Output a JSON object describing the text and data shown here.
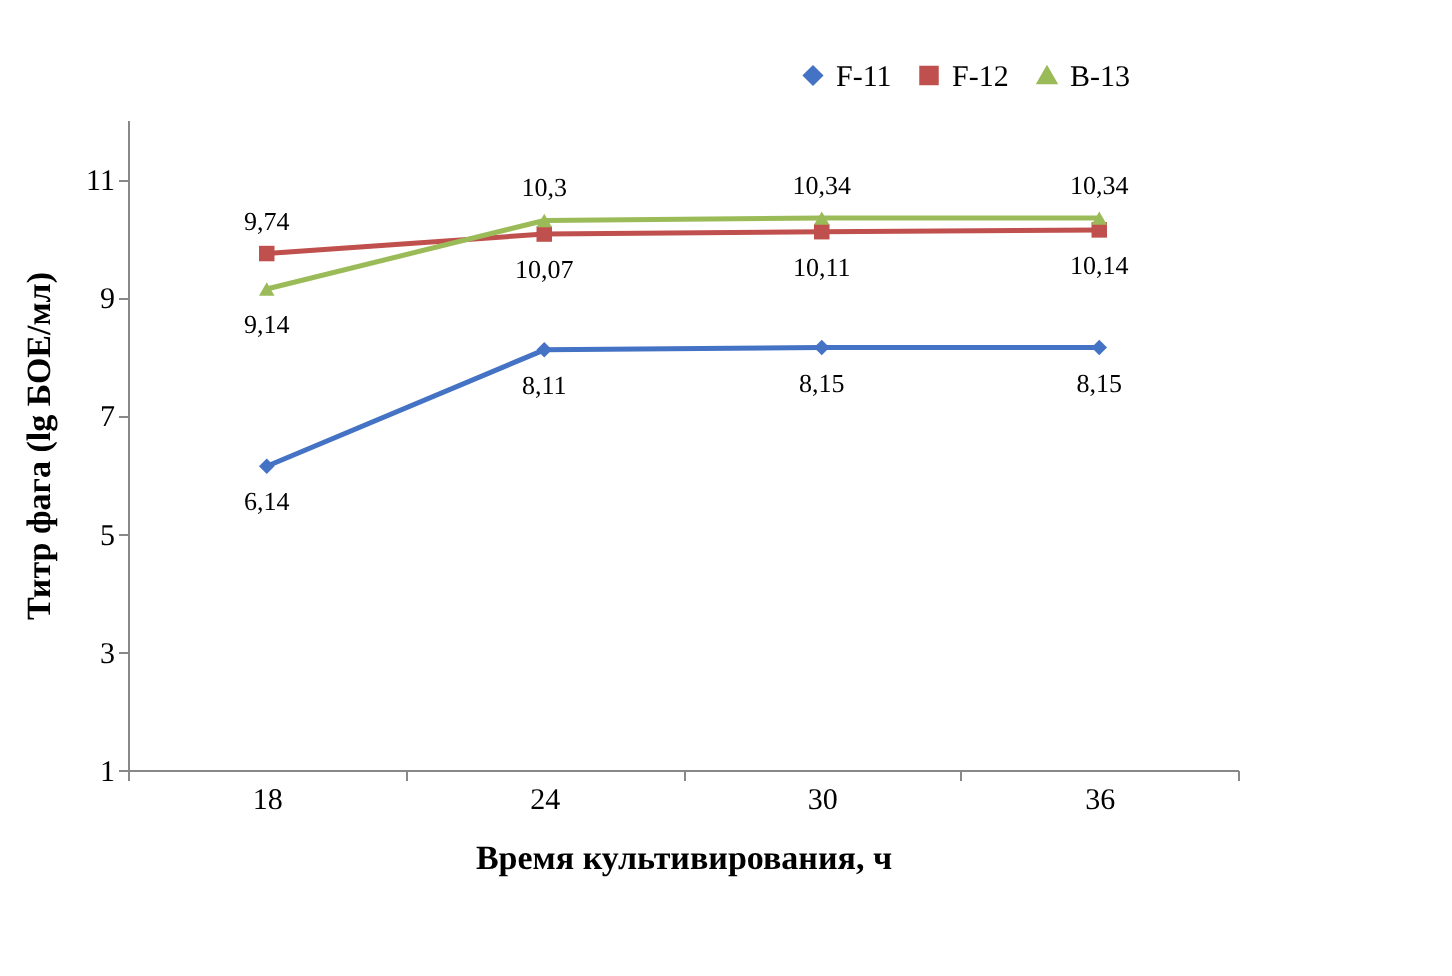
{
  "chart_data": {
    "type": "line",
    "xlabel": "Время культивирования,  ч",
    "ylabel": "Титр фага (lg БОЕ/мл)",
    "categories": [
      "18",
      "24",
      "30",
      "36"
    ],
    "series": [
      {
        "name": "F-11",
        "color": "#4472c4",
        "marker": "diamond",
        "values": [
          6.14,
          8.11,
          8.15,
          8.15
        ],
        "value_labels": [
          "6,14",
          "8,11",
          "8,15",
          "8,15"
        ]
      },
      {
        "name": "F-12",
        "color": "#c0504d",
        "marker": "square",
        "values": [
          9.74,
          10.07,
          10.11,
          10.14
        ],
        "value_labels": [
          "9,74",
          "10,07",
          "10,11",
          "10,14"
        ]
      },
      {
        "name": "B-13",
        "color": "#9bbb59",
        "marker": "triangle",
        "values": [
          9.14,
          10.3,
          10.34,
          10.34
        ],
        "value_labels": [
          "9,14",
          "10,3",
          "10,34",
          "10,34"
        ]
      }
    ],
    "ylim": [
      1,
      12
    ],
    "yticks": [
      1,
      3,
      5,
      7,
      9,
      11
    ],
    "grid": false,
    "legend": "top right"
  }
}
